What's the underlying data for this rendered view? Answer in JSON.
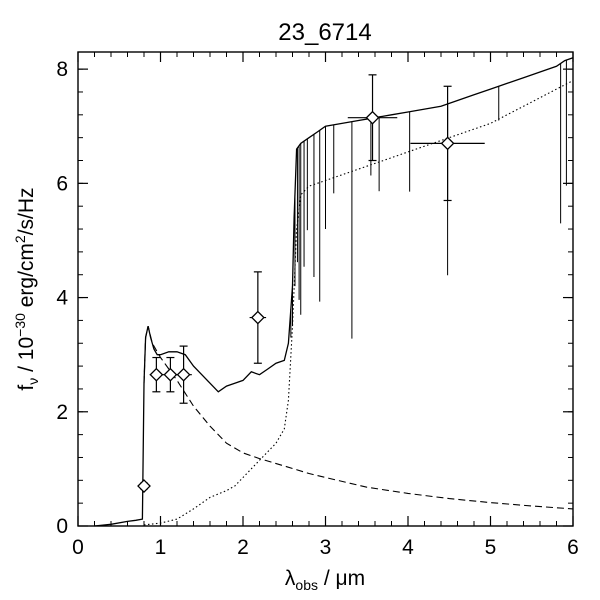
{
  "chart_data": {
    "type": "line",
    "title": "23_6714",
    "xlabel": {
      "main": "λ",
      "sub": "obs",
      "rest": " / μm"
    },
    "ylabel": {
      "main": "f",
      "sub": "ν",
      "mid": " / 10",
      "sup": "−30",
      "rest": " erg/cm",
      "sup2": "2",
      "rest2": "/s/Hz"
    },
    "xlim": [
      0,
      6
    ],
    "ylim": [
      0,
      8.3
    ],
    "x_ticks": [
      0,
      1,
      2,
      3,
      4,
      5,
      6
    ],
    "x_tick_labels": [
      "0",
      "1",
      "2",
      "3",
      "4",
      "5",
      "6"
    ],
    "y_ticks": [
      0,
      2,
      4,
      6,
      8
    ],
    "y_tick_labels": [
      "0",
      "2",
      "4",
      "6",
      "8"
    ],
    "grid": false,
    "series": [
      {
        "style": "solid",
        "x": [
          0.2,
          0.4,
          0.6,
          0.7,
          0.78,
          0.8,
          0.82,
          0.85,
          0.88,
          0.92,
          0.96,
          1.0,
          1.1,
          1.2,
          1.3,
          1.4,
          1.5,
          1.6,
          1.7,
          1.8,
          1.9,
          2.0,
          2.1,
          2.2,
          2.3,
          2.4,
          2.5,
          2.55,
          2.6,
          2.62,
          2.65,
          2.7,
          2.8,
          2.9,
          3.0,
          3.2,
          3.4,
          3.6,
          3.8,
          4.0,
          4.2,
          4.4,
          4.6,
          4.8,
          5.0,
          5.2,
          5.4,
          5.6,
          5.8,
          5.9,
          6.0
        ],
        "y": [
          0.0,
          0.03,
          0.08,
          0.1,
          0.12,
          2.5,
          3.3,
          3.5,
          3.3,
          3.1,
          3.0,
          3.0,
          3.05,
          3.05,
          3.0,
          2.8,
          2.65,
          2.5,
          2.35,
          2.45,
          2.5,
          2.55,
          2.7,
          2.65,
          2.75,
          2.85,
          2.9,
          3.2,
          4.2,
          5.4,
          6.6,
          6.7,
          6.8,
          6.9,
          7.0,
          7.05,
          7.1,
          7.15,
          7.2,
          7.25,
          7.3,
          7.35,
          7.45,
          7.55,
          7.65,
          7.75,
          7.85,
          7.95,
          8.05,
          8.15,
          8.2
        ]
      },
      {
        "style": "dashed",
        "x": [
          0.8,
          0.82,
          0.85,
          0.9,
          1.0,
          1.1,
          1.2,
          1.4,
          1.6,
          1.8,
          2.0,
          2.2,
          2.5,
          2.8,
          3.0,
          3.5,
          4.0,
          4.5,
          5.0,
          5.5,
          6.0
        ],
        "y": [
          2.5,
          3.3,
          3.5,
          3.2,
          2.95,
          2.75,
          2.55,
          2.1,
          1.75,
          1.45,
          1.28,
          1.18,
          1.05,
          0.92,
          0.85,
          0.68,
          0.57,
          0.48,
          0.41,
          0.35,
          0.3
        ]
      },
      {
        "style": "dotted",
        "x": [
          0.8,
          1.0,
          1.2,
          1.4,
          1.6,
          1.8,
          1.9,
          2.0,
          2.2,
          2.4,
          2.5,
          2.55,
          2.6,
          2.65,
          2.7,
          2.8,
          3.0,
          3.2,
          3.4,
          3.6,
          3.8,
          4.0,
          4.2,
          4.4,
          4.6,
          4.8,
          5.0,
          5.2,
          5.4,
          5.6,
          5.8,
          6.0
        ],
        "y": [
          0.02,
          0.05,
          0.12,
          0.3,
          0.5,
          0.62,
          0.7,
          0.85,
          1.15,
          1.45,
          1.7,
          2.2,
          3.5,
          5.2,
          5.8,
          5.95,
          6.05,
          6.15,
          6.25,
          6.35,
          6.45,
          6.55,
          6.65,
          6.75,
          6.85,
          6.95,
          7.05,
          7.2,
          7.35,
          7.5,
          7.65,
          7.8
        ]
      }
    ],
    "absorption_lines": [
      {
        "x": 2.58,
        "d": 0.5
      },
      {
        "x": 2.6,
        "d": 0.7
      },
      {
        "x": 2.63,
        "d": 1.6
      },
      {
        "x": 2.66,
        "d": 2.0
      },
      {
        "x": 2.68,
        "d": 2.7
      },
      {
        "x": 2.7,
        "d": 3.0
      },
      {
        "x": 2.74,
        "d": 2.2
      },
      {
        "x": 2.78,
        "d": 1.6
      },
      {
        "x": 2.86,
        "d": 2.5
      },
      {
        "x": 2.93,
        "d": 3.0
      },
      {
        "x": 3.0,
        "d": 1.8
      },
      {
        "x": 3.1,
        "d": 1.2
      },
      {
        "x": 3.32,
        "d": 3.8
      },
      {
        "x": 3.55,
        "d": 1.0
      },
      {
        "x": 3.65,
        "d": 1.3
      },
      {
        "x": 4.02,
        "d": 1.4
      },
      {
        "x": 4.48,
        "d": 3.0
      },
      {
        "x": 5.1,
        "d": 0.6
      },
      {
        "x": 5.85,
        "d": 2.8
      },
      {
        "x": 5.92,
        "d": 2.2
      }
    ],
    "photometry": [
      {
        "x": 0.8,
        "y": 0.7,
        "xerr": 0.06,
        "yerr": 0.05
      },
      {
        "x": 0.95,
        "y": 2.65,
        "xerr": 0.08,
        "yerr": 0.3
      },
      {
        "x": 1.12,
        "y": 2.65,
        "xerr": 0.1,
        "yerr": 0.3
      },
      {
        "x": 1.28,
        "y": 2.65,
        "xerr": 0.1,
        "yerr": 0.5
      },
      {
        "x": 2.18,
        "y": 3.65,
        "xerr": 0.1,
        "yerr": 0.8
      },
      {
        "x": 3.57,
        "y": 7.15,
        "xerr": 0.3,
        "yerr": 0.75
      },
      {
        "x": 4.48,
        "y": 6.7,
        "xerr": 0.45,
        "yerr": 1.0
      }
    ]
  }
}
